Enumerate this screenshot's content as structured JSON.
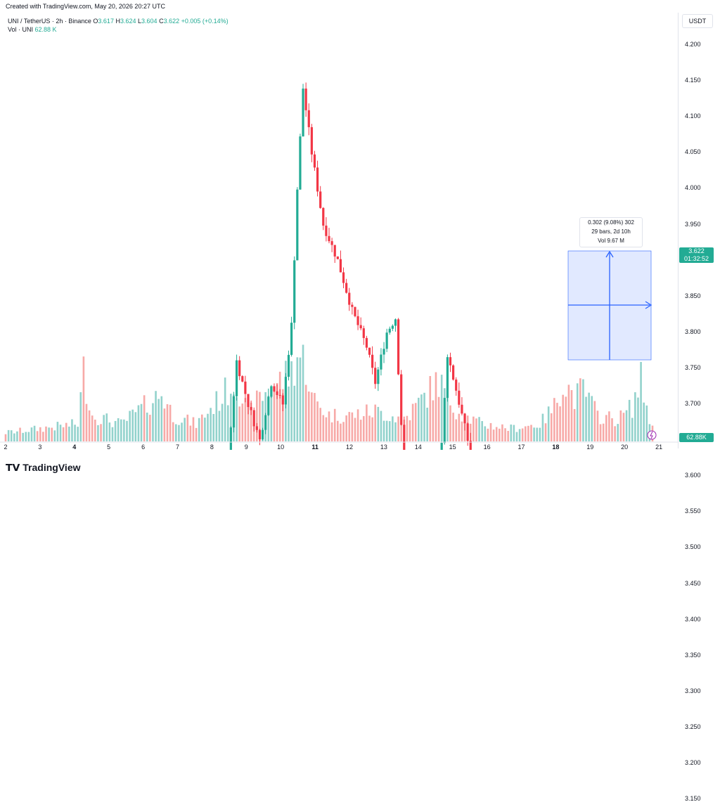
{
  "header": {
    "created": "Created with TradingView.com, May 20, 2026 20:27 UTC"
  },
  "legend": {
    "symbol": "UNI / TetherUS · 2h · Binance",
    "o_label": "O",
    "o": "3.617",
    "h_label": "H",
    "h": "3.624",
    "l_label": "L",
    "l": "3.604",
    "c_label": "C",
    "c": "3.622",
    "change": "+0.005 (+0.14%)",
    "vol_label": "Vol · UNI",
    "vol": "62.88 K"
  },
  "axis": {
    "currency": "USDT",
    "current_price": "3.622",
    "countdown": "01:32:52",
    "volume_tag": "62.88K"
  },
  "measure": {
    "line1": "0.302 (9.08%) 302",
    "line2": "29 bars, 2d 10h",
    "line3": "Vol 9.67 M"
  },
  "brand": "TradingView",
  "colors": {
    "up": "#22ab94",
    "down": "#f23645",
    "up_vol": "#92d2cc",
    "down_vol": "#f7a9a7",
    "measure": "#2962ff"
  },
  "chart_data": {
    "type": "candlestick",
    "title": "UNI / TetherUS · 2h · Binance",
    "ylim": [
      3.1,
      4.25
    ],
    "y_ticks": [
      "4.200",
      "4.150",
      "4.100",
      "4.050",
      "4.000",
      "3.950",
      "3.900",
      "3.850",
      "3.800",
      "3.750",
      "3.700",
      "3.650",
      "3.600",
      "3.550",
      "3.500",
      "3.450",
      "3.400",
      "3.350",
      "3.300",
      "3.250",
      "3.200",
      "3.150"
    ],
    "x_ticks": [
      {
        "label": "2",
        "bold": false
      },
      {
        "label": "3",
        "bold": false
      },
      {
        "label": "4",
        "bold": true
      },
      {
        "label": "5",
        "bold": false
      },
      {
        "label": "6",
        "bold": false
      },
      {
        "label": "7",
        "bold": false
      },
      {
        "label": "8",
        "bold": false
      },
      {
        "label": "9",
        "bold": false
      },
      {
        "label": "10",
        "bold": false
      },
      {
        "label": "11",
        "bold": true
      },
      {
        "label": "12",
        "bold": false
      },
      {
        "label": "13",
        "bold": false
      },
      {
        "label": "14",
        "bold": false
      },
      {
        "label": "15",
        "bold": false
      },
      {
        "label": "16",
        "bold": false
      },
      {
        "label": "17",
        "bold": false
      },
      {
        "label": "18",
        "bold": true
      },
      {
        "label": "19",
        "bold": false
      },
      {
        "label": "20",
        "bold": false
      },
      {
        "label": "21",
        "bold": false
      }
    ],
    "close_waypoints": [
      [
        0,
        3.21
      ],
      [
        6,
        3.22
      ],
      [
        10,
        3.26
      ],
      [
        14,
        3.23
      ],
      [
        18,
        3.25
      ],
      [
        22,
        3.25
      ],
      [
        26,
        3.44
      ],
      [
        29,
        3.33
      ],
      [
        33,
        3.3
      ],
      [
        38,
        3.35
      ],
      [
        44,
        3.41
      ],
      [
        50,
        3.44
      ],
      [
        54,
        3.55
      ],
      [
        58,
        3.48
      ],
      [
        62,
        3.52
      ],
      [
        66,
        3.45
      ],
      [
        70,
        3.47
      ],
      [
        75,
        3.53
      ],
      [
        80,
        3.76
      ],
      [
        84,
        3.7
      ],
      [
        88,
        3.65
      ],
      [
        92,
        3.73
      ],
      [
        96,
        3.7
      ],
      [
        99,
        3.81
      ],
      [
        101,
        4.0
      ],
      [
        103,
        4.14
      ],
      [
        106,
        4.05
      ],
      [
        110,
        3.95
      ],
      [
        115,
        3.9
      ],
      [
        120,
        3.83
      ],
      [
        125,
        3.78
      ],
      [
        128,
        3.73
      ],
      [
        132,
        3.8
      ],
      [
        135,
        3.82
      ],
      [
        138,
        3.6
      ],
      [
        142,
        3.58
      ],
      [
        146,
        3.61
      ],
      [
        150,
        3.58
      ],
      [
        153,
        3.77
      ],
      [
        156,
        3.72
      ],
      [
        160,
        3.65
      ],
      [
        163,
        3.55
      ],
      [
        166,
        3.61
      ],
      [
        170,
        3.53
      ],
      [
        174,
        3.48
      ],
      [
        178,
        3.52
      ],
      [
        182,
        3.49
      ],
      [
        186,
        3.56
      ],
      [
        190,
        3.55
      ],
      [
        193,
        3.46
      ],
      [
        197,
        3.43
      ],
      [
        200,
        3.44
      ],
      [
        203,
        3.54
      ],
      [
        206,
        3.52
      ],
      [
        210,
        3.48
      ],
      [
        214,
        3.47
      ],
      [
        217,
        3.5
      ],
      [
        221,
        3.62
      ],
      [
        224,
        3.62
      ]
    ],
    "volume_waypoints": [
      [
        0,
        0.1
      ],
      [
        25,
        0.2
      ],
      [
        27,
        0.8
      ],
      [
        30,
        0.3
      ],
      [
        40,
        0.2
      ],
      [
        54,
        0.55
      ],
      [
        58,
        0.3
      ],
      [
        66,
        0.2
      ],
      [
        80,
        0.7
      ],
      [
        84,
        0.3
      ],
      [
        88,
        0.5
      ],
      [
        99,
        0.8
      ],
      [
        101,
        1.0
      ],
      [
        104,
        0.9
      ],
      [
        106,
        0.5
      ],
      [
        112,
        0.3
      ],
      [
        120,
        0.3
      ],
      [
        128,
        0.35
      ],
      [
        138,
        0.25
      ],
      [
        150,
        0.7
      ],
      [
        153,
        0.5
      ],
      [
        158,
        0.3
      ],
      [
        165,
        0.2
      ],
      [
        175,
        0.15
      ],
      [
        185,
        0.2
      ],
      [
        190,
        0.4
      ],
      [
        193,
        0.7
      ],
      [
        197,
        0.5
      ],
      [
        200,
        0.6
      ],
      [
        205,
        0.3
      ],
      [
        212,
        0.25
      ],
      [
        217,
        0.4
      ],
      [
        220,
        0.7
      ],
      [
        222,
        0.4
      ],
      [
        224,
        0.15
      ]
    ],
    "volume_current": "62.88K"
  }
}
